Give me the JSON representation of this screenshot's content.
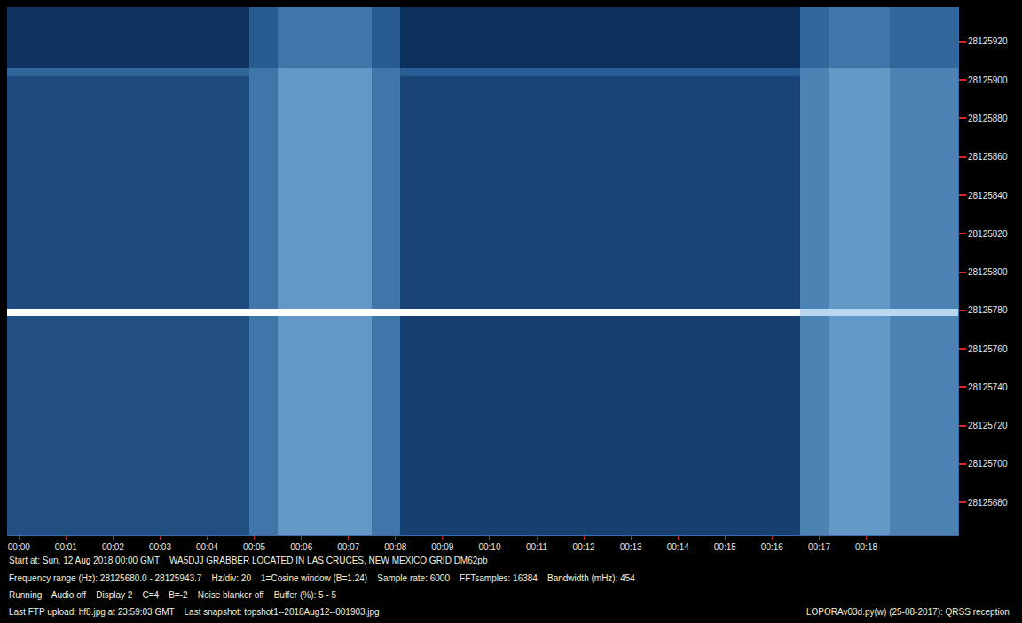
{
  "chart_data": {
    "type": "heatmap",
    "x_edges": [
      -0.25,
      4.9,
      5.5,
      7.5,
      8.1,
      16.6,
      17.2,
      18.5,
      19.95
    ],
    "y_edges": [
      28125663,
      28125777,
      28125781,
      28125902,
      28125906,
      28125938
    ],
    "cells": [
      [
        35,
        50,
        62,
        50,
        28,
        55,
        62,
        55
      ],
      [
        95,
        95,
        95,
        95,
        95,
        80,
        80,
        80
      ],
      [
        33,
        50,
        62,
        50,
        30,
        55,
        62,
        55
      ],
      [
        45,
        50,
        62,
        50,
        42,
        55,
        62,
        55
      ],
      [
        22,
        40,
        50,
        40,
        20,
        45,
        50,
        45
      ]
    ],
    "xlim": [
      -0.25,
      19.95
    ],
    "xticks": [
      {
        "value": 0,
        "label": "00:00"
      },
      {
        "value": 1,
        "label": "00:01"
      },
      {
        "value": 2,
        "label": "00:02"
      },
      {
        "value": 3,
        "label": "00:03"
      },
      {
        "value": 4,
        "label": "00:04"
      },
      {
        "value": 5,
        "label": "00:05"
      },
      {
        "value": 6,
        "label": "00:06"
      },
      {
        "value": 7,
        "label": "00:07"
      },
      {
        "value": 8,
        "label": "00:08"
      },
      {
        "value": 9,
        "label": "00:09"
      },
      {
        "value": 10,
        "label": "00:10"
      },
      {
        "value": 11,
        "label": "00:11"
      },
      {
        "value": 12,
        "label": "00:12"
      },
      {
        "value": 13,
        "label": "00:13"
      },
      {
        "value": 14,
        "label": "00:14"
      },
      {
        "value": 15,
        "label": "00:15"
      },
      {
        "value": 16,
        "label": "00:16"
      },
      {
        "value": 17,
        "label": "00:17"
      },
      {
        "value": 18,
        "label": "00:18"
      }
    ],
    "ylim": [
      28125663,
      28125938
    ],
    "yticks": [
      28125680,
      28125700,
      28125720,
      28125740,
      28125760,
      28125780,
      28125800,
      28125820,
      28125840,
      28125860,
      28125880,
      28125900,
      28125920
    ],
    "annotations": [
      "Start at: Sun, 12 Aug 2018 00:00 GMT    WA5DJJ GRABBER LOCATED IN LAS CRUCES, NEW MEXICO GRID DM62pb",
      "Frequency range (Hz): 28125680.0 - 28125943.7    Hz/div: 20    1=Cosine window (B=1.24)    Sample rate: 6000    FFTsamples: 16384    Bandwidth (mHz): 454",
      "Running    Audio off    Display 2    C=4    B=-2    Noise blanker off    Buffer (%): 5 - 5",
      "Last FTP upload: hf8.jpg at 23:59:03 GMT    Last snapshot: topshot1--2018Aug12--001903.jpg",
      "LOPORAv03d.py(w) (25-08-2017): QRSS reception"
    ]
  }
}
